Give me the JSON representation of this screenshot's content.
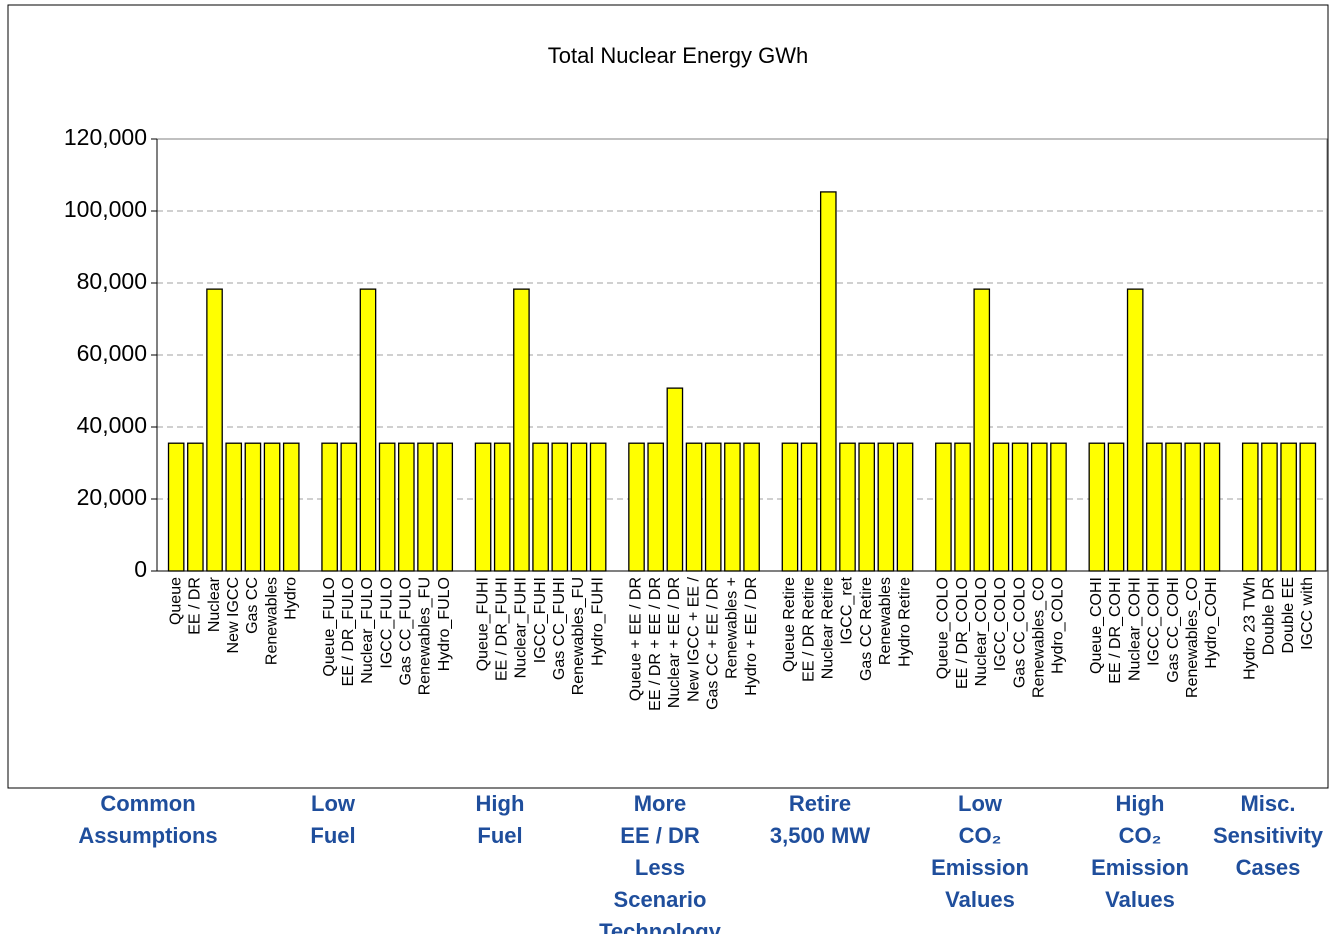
{
  "chart_data": {
    "type": "bar",
    "title": "Total Nuclear Energy GWh",
    "categories": [
      "Queue",
      "EE / DR",
      "Nuclear",
      "New IGCC",
      "Gas CC",
      "Renewables",
      "Hydro",
      null,
      "Queue_FULO",
      "EE / DR_FULO",
      "Nuclear_FULO",
      "IGCC_FULO",
      "Gas CC_FULO",
      "Renewables_FU",
      "Hydro_FULO",
      null,
      "Queue_FUHI",
      "EE / DR_FUHI",
      "Nuclear_FUHI",
      "IGCC_FUHI",
      "Gas CC_FUHI",
      "Renewables_FU",
      "Hydro_FUHI",
      null,
      "Queue + EE / DR",
      "EE / DR + EE / DR",
      "Nuclear + EE / DR",
      "New IGCC + EE /",
      "Gas CC + EE / DR",
      "Renewables +",
      "Hydro + EE / DR",
      null,
      "Queue Retire",
      "EE / DR Retire",
      "Nuclear Retire",
      "IGCC_ret",
      "Gas CC Retire",
      "Renewables",
      "Hydro Retire",
      null,
      "Queue_COLO",
      "EE / DR_COLO",
      "Nuclear_COLO",
      "IGCC_COLO",
      "Gas CC_COLO",
      "Renewables_CO",
      "Hydro_COLO",
      null,
      "Queue_COHI",
      "EE / DR_COHI",
      "Nuclear_COHI",
      "IGCC_COHI",
      "Gas CC_COHI",
      "Renewables_CO",
      "Hydro_COHI",
      null,
      "Hydro 23 TWh",
      "Double DR",
      "Double EE",
      "IGCC with"
    ],
    "values": [
      35500,
      35500,
      78300,
      35500,
      35500,
      35500,
      35500,
      null,
      35500,
      35500,
      78300,
      35500,
      35500,
      35500,
      35500,
      null,
      35500,
      35500,
      78300,
      35500,
      35500,
      35500,
      35500,
      null,
      35500,
      35500,
      50800,
      35500,
      35500,
      35500,
      35500,
      null,
      35500,
      35500,
      105300,
      35500,
      35500,
      35500,
      35500,
      null,
      35500,
      35500,
      78300,
      35500,
      35500,
      35500,
      35500,
      null,
      35500,
      35500,
      78300,
      35500,
      35500,
      35500,
      35500,
      null,
      35500,
      35500,
      35500,
      35500
    ],
    "color": "#ffff00",
    "ylim": [
      0,
      120000
    ],
    "yticks": [
      0,
      {
        "value": 20000,
        "label": "20,000"
      },
      {
        "value": 40000,
        "label": "40,000"
      },
      {
        "value": 60000,
        "label": "60,000"
      },
      {
        "value": 80000,
        "label": "80,000"
      },
      {
        "value": 100000,
        "label": "100,000"
      },
      {
        "value": 120000,
        "label": "120,000"
      }
    ],
    "grid": true,
    "group_labels": [
      [
        "Common",
        "Assumptions"
      ],
      [
        "Low",
        "Fuel"
      ],
      [
        "High",
        "Fuel"
      ],
      [
        "More",
        "EE / DR",
        "Less",
        "Scenario",
        "Technology"
      ],
      [
        "Retire",
        "3,500 MW"
      ],
      [
        "Low",
        "CO₂",
        "Emission",
        "Values"
      ],
      [
        "High",
        "CO₂",
        "Emission",
        "Values"
      ],
      [
        "Misc.",
        "Sensitivity",
        "Cases"
      ]
    ]
  }
}
